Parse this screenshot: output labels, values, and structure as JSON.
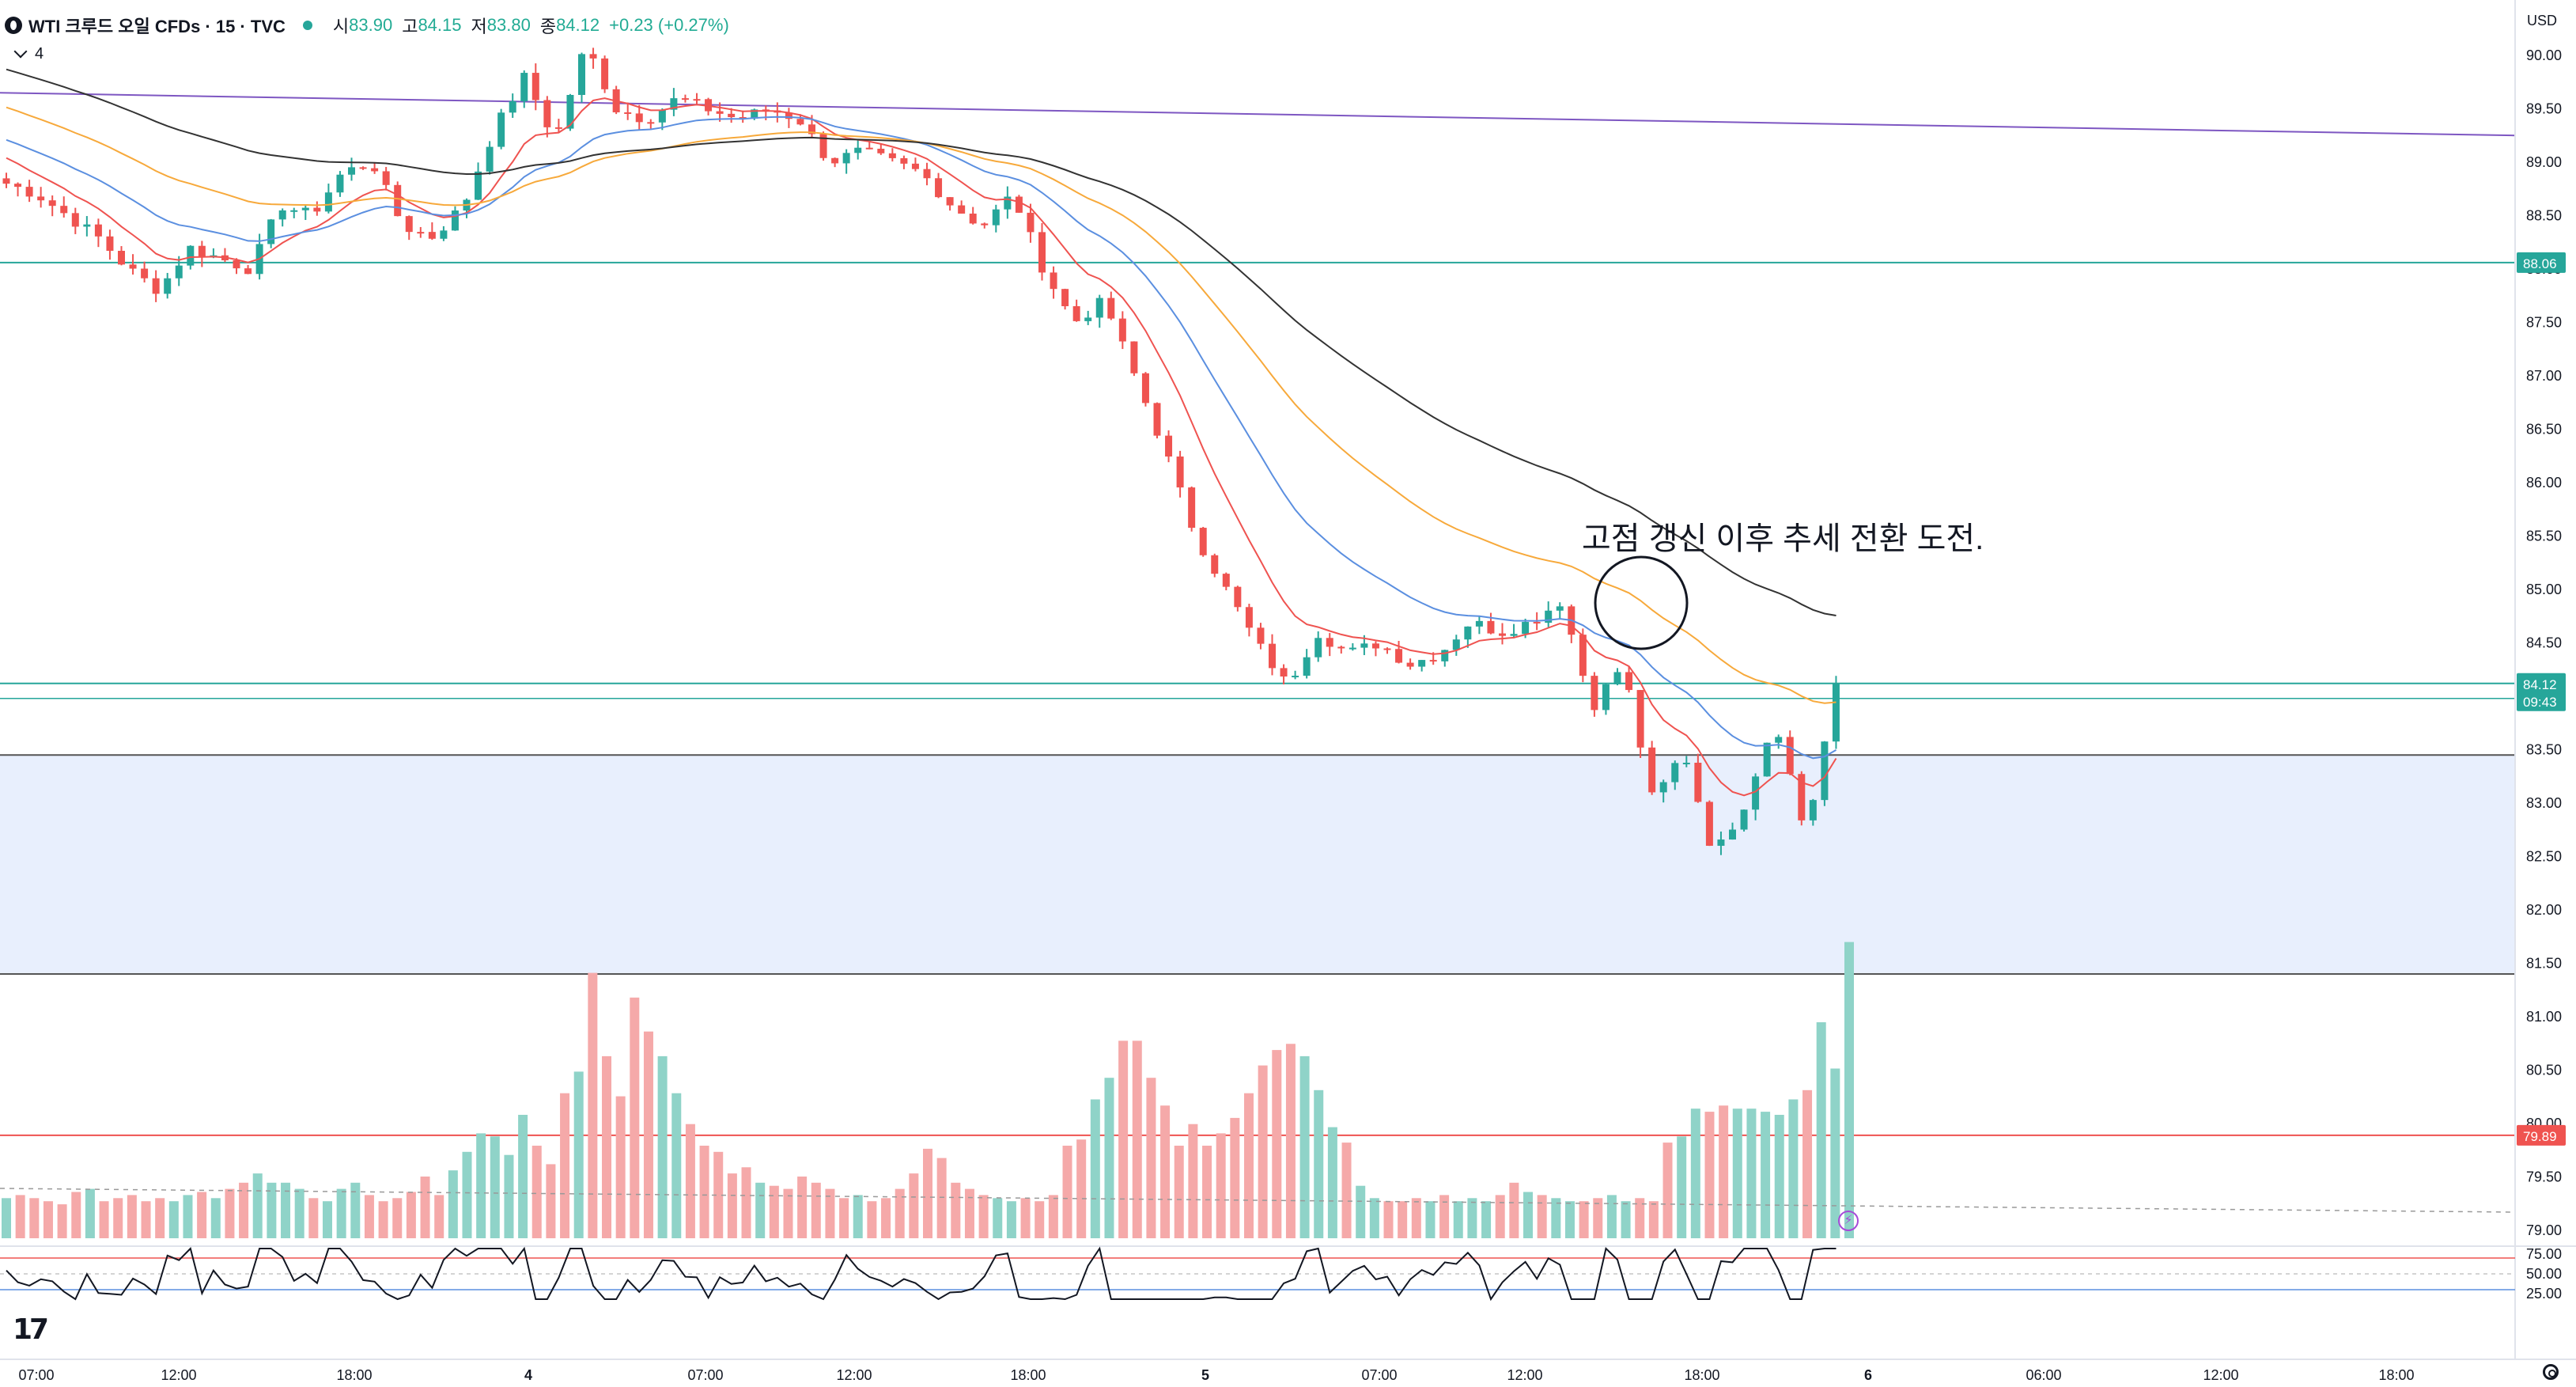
{
  "header": {
    "title": "WTI 크루드 오일 CFDs · 15 · TVC",
    "open_label": "시",
    "open": "83.90",
    "high_label": "고",
    "high": "84.15",
    "low_label": "저",
    "low": "83.80",
    "close_label": "종",
    "close": "84.12",
    "change": "+0.23 (+0.27%)",
    "indicator_count": "4"
  },
  "currency": "USD",
  "annotation": "고점 갱신 이후 추세 전환 도전.",
  "colors": {
    "up": "#26a69a",
    "down": "#ef5350",
    "vol_up": "#8fd3c8",
    "vol_down": "#f5a9a9",
    "ma_red": "#ef5350",
    "ma_blue": "#5b8fe0",
    "ma_orange": "#f7a93b",
    "ma_black": "#333333",
    "trend": "#7e57c2",
    "zone": "#e8effd"
  },
  "chart_data": [
    {
      "type": "candlestick",
      "title": "",
      "xlabel": "",
      "ylabel": "",
      "ylim": [
        78.75,
        90.3
      ],
      "x_ticks": [
        "07:00",
        "12:00",
        "18:00",
        "4",
        "07:00",
        "12:00",
        "18:00",
        "5",
        "07:00",
        "12:00",
        "18:00",
        "6",
        "06:00",
        "12:00",
        "18:00"
      ],
      "y_ticks": [
        "90.00",
        "89.50",
        "89.00",
        "88.50",
        "88.00",
        "87.50",
        "87.00",
        "86.50",
        "86.00",
        "85.50",
        "85.00",
        "84.50",
        "84.00",
        "83.50",
        "83.00",
        "82.50",
        "82.00",
        "81.50",
        "81.00",
        "80.50",
        "80.00",
        "79.50",
        "79.00"
      ],
      "ohlc_path": [
        88.8,
        88.7,
        88.5,
        88.3,
        88.0,
        87.8,
        88.2,
        88.1,
        88.0,
        88.6,
        88.5,
        88.9,
        89.0,
        88.4,
        88.3,
        88.6,
        89.3,
        89.8,
        89.2,
        90.1,
        89.5,
        89.4,
        89.6,
        89.5,
        89.4,
        89.5,
        89.4,
        89.0,
        89.1,
        89.0,
        88.9,
        88.6,
        88.4,
        88.7,
        88.0,
        87.5,
        87.7,
        87.0,
        86.3,
        85.5,
        85.0,
        84.5,
        84.1,
        84.6,
        84.4,
        84.5,
        84.3,
        84.4,
        84.7,
        84.6,
        84.7,
        84.9,
        83.9,
        84.3,
        83.0,
        83.5,
        82.5,
        83.0,
        83.8,
        82.7,
        84.1
      ],
      "levels": [
        {
          "value": 88.06,
          "label": "88.06",
          "color": "#26a69a"
        },
        {
          "value": 84.12,
          "label": "84.12",
          "color": "#26a69a"
        },
        {
          "value": 83.45,
          "color": "#555555"
        },
        {
          "value": 81.4,
          "color": "#555555"
        },
        {
          "value": 79.89,
          "label": "79.89",
          "color": "#ef5350"
        }
      ],
      "countdown": "09:43",
      "zone": [
        81.4,
        83.45
      ],
      "trend_line": [
        89.65,
        89.25
      ],
      "volume_relative": [
        0.13,
        0.14,
        0.13,
        0.12,
        0.11,
        0.15,
        0.16,
        0.12,
        0.13,
        0.14,
        0.12,
        0.13,
        0.12,
        0.14,
        0.15,
        0.13,
        0.16,
        0.18,
        0.21,
        0.18,
        0.18,
        0.16,
        0.13,
        0.12,
        0.16,
        0.18,
        0.14,
        0.12,
        0.13,
        0.15,
        0.2,
        0.14,
        0.22,
        0.28,
        0.34,
        0.33,
        0.27,
        0.4,
        0.3,
        0.24,
        0.47,
        0.54,
        0.86,
        0.59,
        0.46,
        0.78,
        0.67,
        0.59,
        0.47,
        0.37,
        0.3,
        0.28,
        0.21,
        0.23,
        0.18,
        0.17,
        0.16,
        0.2,
        0.18,
        0.16,
        0.13,
        0.14,
        0.12,
        0.13,
        0.16,
        0.21,
        0.29,
        0.26,
        0.18,
        0.16,
        0.14,
        0.13,
        0.12,
        0.13,
        0.12,
        0.14,
        0.3,
        0.32,
        0.45,
        0.52,
        0.64,
        0.64,
        0.52,
        0.43,
        0.3,
        0.37,
        0.3,
        0.34,
        0.39,
        0.47,
        0.56,
        0.61,
        0.63,
        0.59,
        0.48,
        0.36,
        0.31,
        0.17,
        0.13,
        0.12,
        0.12,
        0.13,
        0.12,
        0.14,
        0.12,
        0.13,
        0.12,
        0.14,
        0.18,
        0.15,
        0.14,
        0.13,
        0.12,
        0.12,
        0.13,
        0.14,
        0.12,
        0.13,
        0.12,
        0.31,
        0.33,
        0.42,
        0.41,
        0.43,
        0.42,
        0.42,
        0.41,
        0.4,
        0.45,
        0.48,
        0.7,
        0.55,
        0.96
      ]
    },
    {
      "type": "line",
      "title": "",
      "ylim": [
        10,
        90
      ],
      "y_ticks": [
        "75.00",
        "50.00",
        "25.00"
      ],
      "levels": [
        70,
        50,
        30
      ]
    }
  ]
}
